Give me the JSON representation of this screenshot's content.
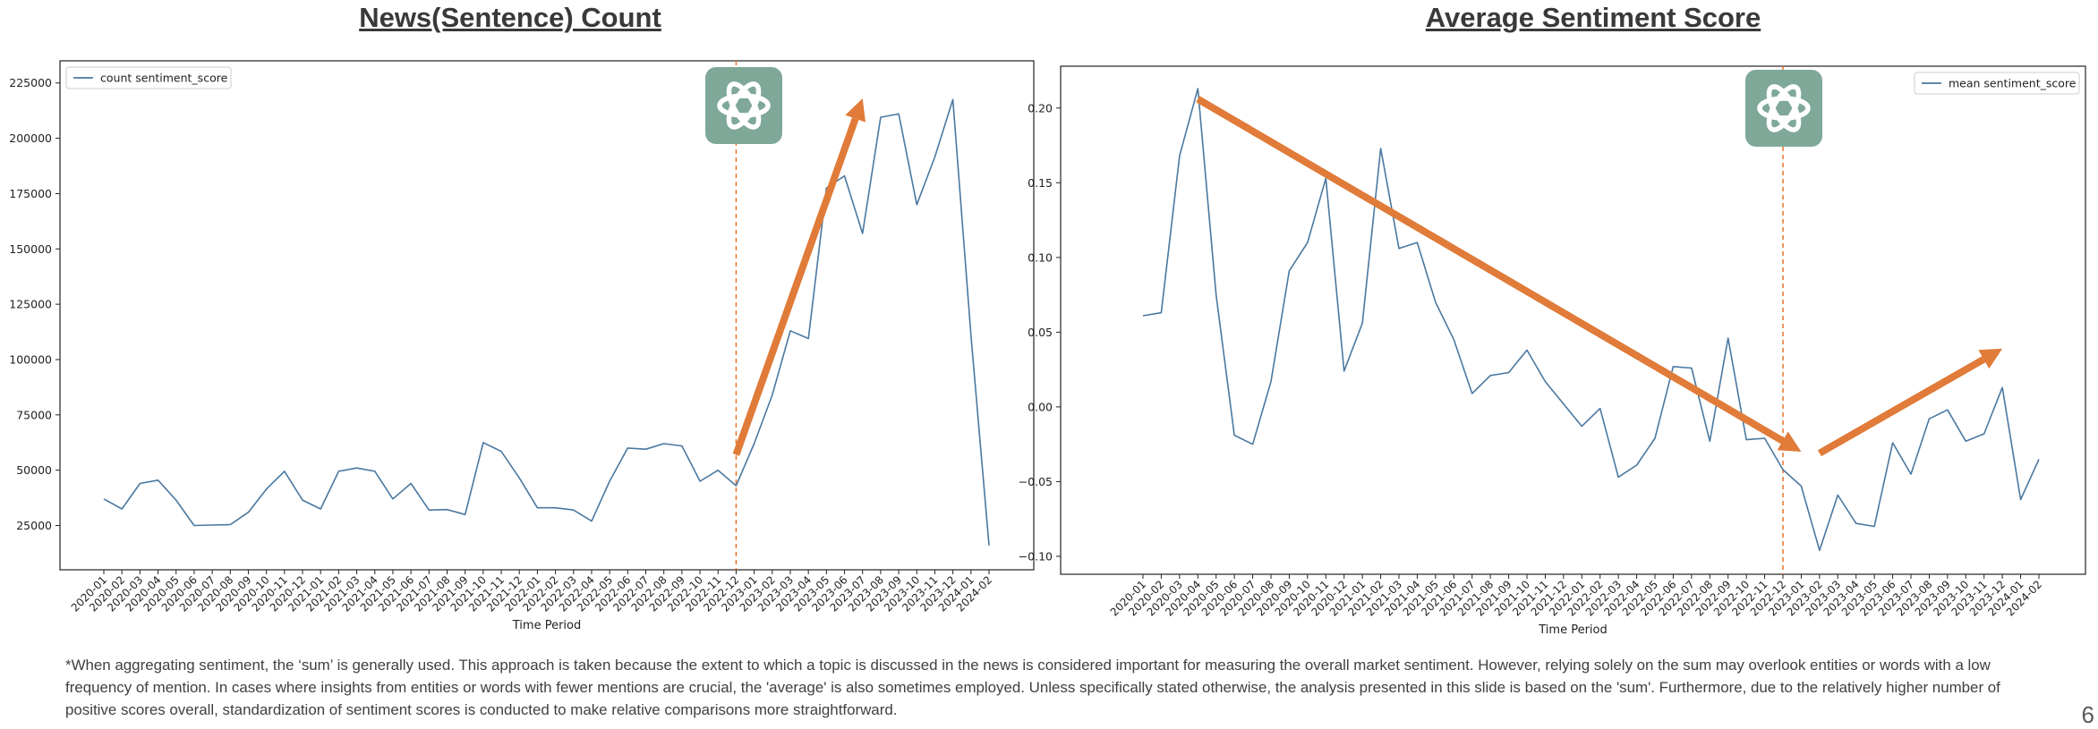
{
  "titles": {
    "left": "News(Sentence) Count",
    "right": "Average Sentiment Score"
  },
  "chart_data": [
    {
      "type": "line",
      "title": "News(Sentence) Count",
      "xlabel": "Time Period",
      "ylabel": "",
      "ylim": [
        5000,
        235000
      ],
      "yticks": [
        25000,
        50000,
        75000,
        100000,
        125000,
        150000,
        175000,
        200000,
        225000
      ],
      "legend": "top-left",
      "grid": false,
      "line_color": "#4a78a0",
      "categories": [
        "2020-01",
        "2020-02",
        "2020-03",
        "2020-04",
        "2020-05",
        "2020-06",
        "2020-07",
        "2020-08",
        "2020-09",
        "2020-10",
        "2020-11",
        "2020-12",
        "2021-01",
        "2021-02",
        "2021-03",
        "2021-04",
        "2021-05",
        "2021-06",
        "2021-07",
        "2021-08",
        "2021-09",
        "2021-10",
        "2021-11",
        "2021-12",
        "2022-01",
        "2022-02",
        "2022-03",
        "2022-04",
        "2022-05",
        "2022-06",
        "2022-07",
        "2022-08",
        "2022-09",
        "2022-10",
        "2022-11",
        "2022-12",
        "2023-01",
        "2023-02",
        "2023-03",
        "2023-04",
        "2023-05",
        "2023-06",
        "2023-07",
        "2023-08",
        "2023-09",
        "2023-10",
        "2023-11",
        "2023-12",
        "2024-01",
        "2024-02"
      ],
      "series": [
        {
          "name": "count sentiment_score",
          "values": [
            37000,
            32500,
            44000,
            45500,
            36500,
            25000,
            25200,
            25400,
            31000,
            41500,
            49500,
            36500,
            32500,
            49500,
            51000,
            49500,
            37000,
            44000,
            32000,
            32200,
            30000,
            62500,
            58500,
            46500,
            33000,
            33000,
            32000,
            27000,
            45000,
            60000,
            59500,
            62000,
            61000,
            45000,
            50000,
            43000,
            62000,
            84000,
            113000,
            109500,
            177500,
            183000,
            157000,
            209500,
            211000,
            170000,
            191500,
            217500,
            111000,
            16000
          ]
        }
      ],
      "vline": {
        "at": "2022-12",
        "color": "#e8742a"
      },
      "arrows": [
        {
          "from": [
            "2022-12",
            57000
          ],
          "to": [
            "2023-07",
            218000
          ],
          "color": "#e07b39"
        }
      ],
      "logo_color": "#7fa899"
    },
    {
      "type": "line",
      "title": "Average Sentiment Score",
      "xlabel": "Time Period",
      "ylabel": "",
      "ylim": [
        -0.112,
        0.228
      ],
      "yticks": [
        -0.1,
        -0.05,
        0.0,
        0.05,
        0.1,
        0.15,
        0.2
      ],
      "ytick_labels": [
        "−0.10",
        "−0.05",
        "0.00",
        "0.05",
        "0.10",
        "0.15",
        "0.20"
      ],
      "legend": "top-right",
      "grid": false,
      "line_color": "#4a78a0",
      "categories": [
        "2020-01",
        "2020-02",
        "2020-03",
        "2020-04",
        "2020-05",
        "2020-06",
        "2020-07",
        "2020-08",
        "2020-09",
        "2020-10",
        "2020-11",
        "2020-12",
        "2021-01",
        "2021-02",
        "2021-03",
        "2021-04",
        "2021-05",
        "2021-06",
        "2021-07",
        "2021-08",
        "2021-09",
        "2021-10",
        "2021-11",
        "2021-12",
        "2022-01",
        "2022-02",
        "2022-03",
        "2022-04",
        "2022-05",
        "2022-06",
        "2022-07",
        "2022-08",
        "2022-09",
        "2022-10",
        "2022-11",
        "2022-12",
        "2023-01",
        "2023-02",
        "2023-03",
        "2023-04",
        "2023-05",
        "2023-06",
        "2023-07",
        "2023-08",
        "2023-09",
        "2023-10",
        "2023-11",
        "2023-12",
        "2024-01",
        "2024-02"
      ],
      "series": [
        {
          "name": "mean sentiment_score",
          "values": [
            0.061,
            0.063,
            0.168,
            0.213,
            0.075,
            -0.019,
            -0.025,
            0.017,
            0.091,
            0.11,
            0.153,
            0.024,
            0.056,
            0.173,
            0.106,
            0.11,
            0.07,
            0.045,
            0.009,
            0.021,
            0.023,
            0.038,
            0.017,
            0.002,
            -0.013,
            -0.001,
            -0.047,
            -0.039,
            -0.021,
            0.027,
            0.026,
            -0.023,
            0.046,
            -0.022,
            -0.021,
            -0.042,
            -0.053,
            -0.096,
            -0.059,
            -0.078,
            -0.08,
            -0.024,
            -0.045,
            -0.008,
            -0.002,
            -0.023,
            -0.018,
            0.013,
            -0.062,
            -0.035
          ]
        }
      ],
      "vline": {
        "at": "2022-12",
        "color": "#e8742a"
      },
      "arrows": [
        {
          "from": [
            "2020-04",
            0.206
          ],
          "to": [
            "2023-01",
            -0.03
          ],
          "color": "#e07b39"
        },
        {
          "from": [
            "2023-02",
            -0.031
          ],
          "to": [
            "2023-12",
            0.039
          ],
          "color": "#e07b39"
        }
      ],
      "logo_color": "#7fa899"
    }
  ],
  "footnote": "*When aggregating sentiment, the ‘sum’ is generally used. This approach is taken because the extent to which a topic is discussed in the news is considered important for measuring the overall market sentiment. However, relying solely on the sum may overlook entities or words with a low frequency of mention. In cases where insights from entities or words with fewer mentions are crucial, the 'average' is also sometimes employed. Unless specifically stated otherwise, the analysis presented in this slide is based on the 'sum'. Furthermore, due to the relatively higher number of positive scores overall, standardization of sentiment scores is conducted to make relative comparisons more straightforward.",
  "page_number": "6"
}
